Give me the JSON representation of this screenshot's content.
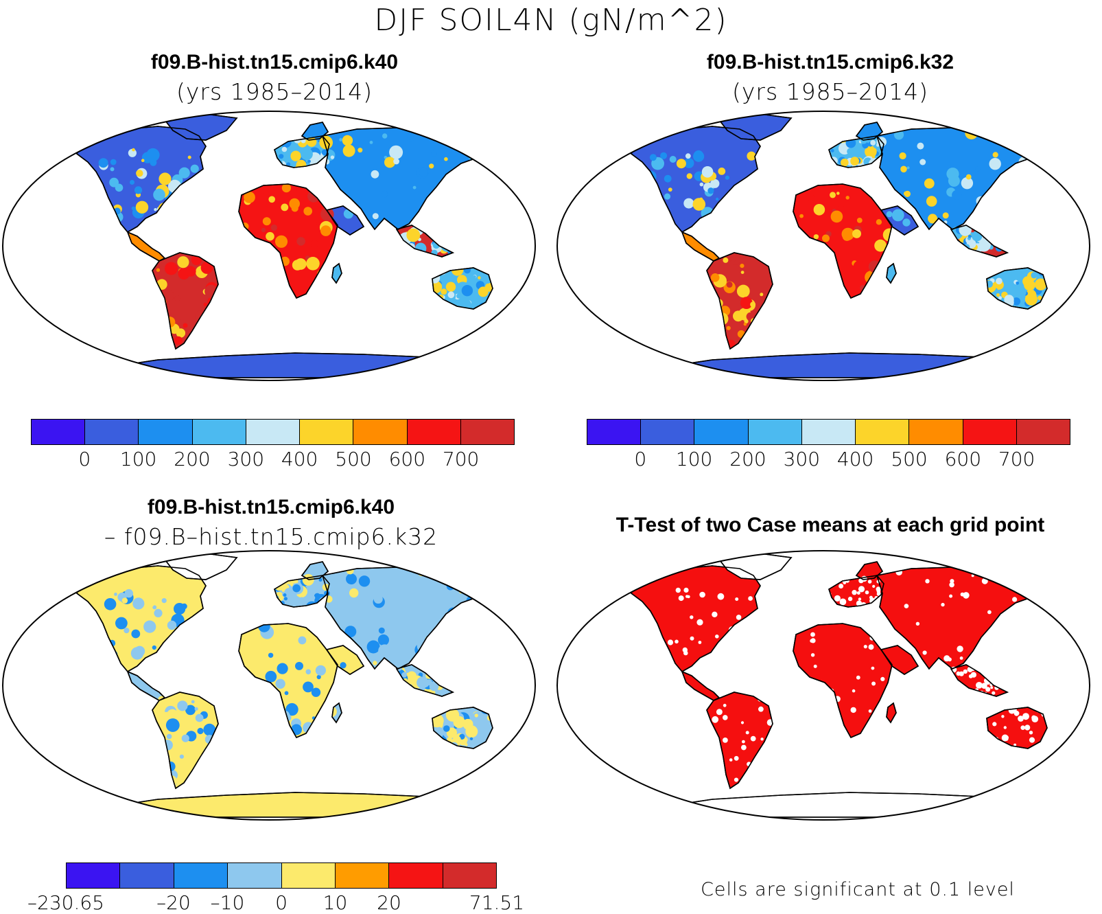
{
  "figure": {
    "title": "DJF SOIL4N (gN/m^2)"
  },
  "panels": {
    "top_left": {
      "case": "f09.B-hist.tn15.cmip6.k40",
      "years": "(yrs 1985–2014)"
    },
    "top_right": {
      "case": "f09.B-hist.tn15.cmip6.k32",
      "years": "(yrs 1985–2014)"
    },
    "bottom_left": {
      "case": "f09.B-hist.tn15.cmip6.k40",
      "minus": "– f09.B–hist.tn15.cmip6.k32"
    },
    "bottom_right": {
      "title": "T-Test of two Case means at each grid point",
      "note": "Cells are significant at 0.1 level"
    }
  },
  "colorbars": {
    "abs": {
      "colors": [
        "#3b14f2",
        "#3a5ede",
        "#1d8ff0",
        "#4cbaf0",
        "#c8e8f5",
        "#fcd42a",
        "#ff8c00",
        "#f51414",
        "#d32b2b"
      ],
      "ticks": [
        "0",
        "100",
        "200",
        "300",
        "400",
        "500",
        "600",
        "700"
      ]
    },
    "diff": {
      "colors": [
        "#3b14f2",
        "#3a5ede",
        "#1d8ff0",
        "#8ec8ee",
        "#fcea6c",
        "#ff9c00",
        "#f51414",
        "#d32b2b"
      ],
      "ticks": [
        "–230.65",
        "–20",
        "–10",
        "0",
        "10",
        "20",
        "71.51"
      ]
    }
  },
  "map_colors": {
    "ocean": "#ffffff",
    "significant": "#f50f0f",
    "coast": "#000000"
  }
}
